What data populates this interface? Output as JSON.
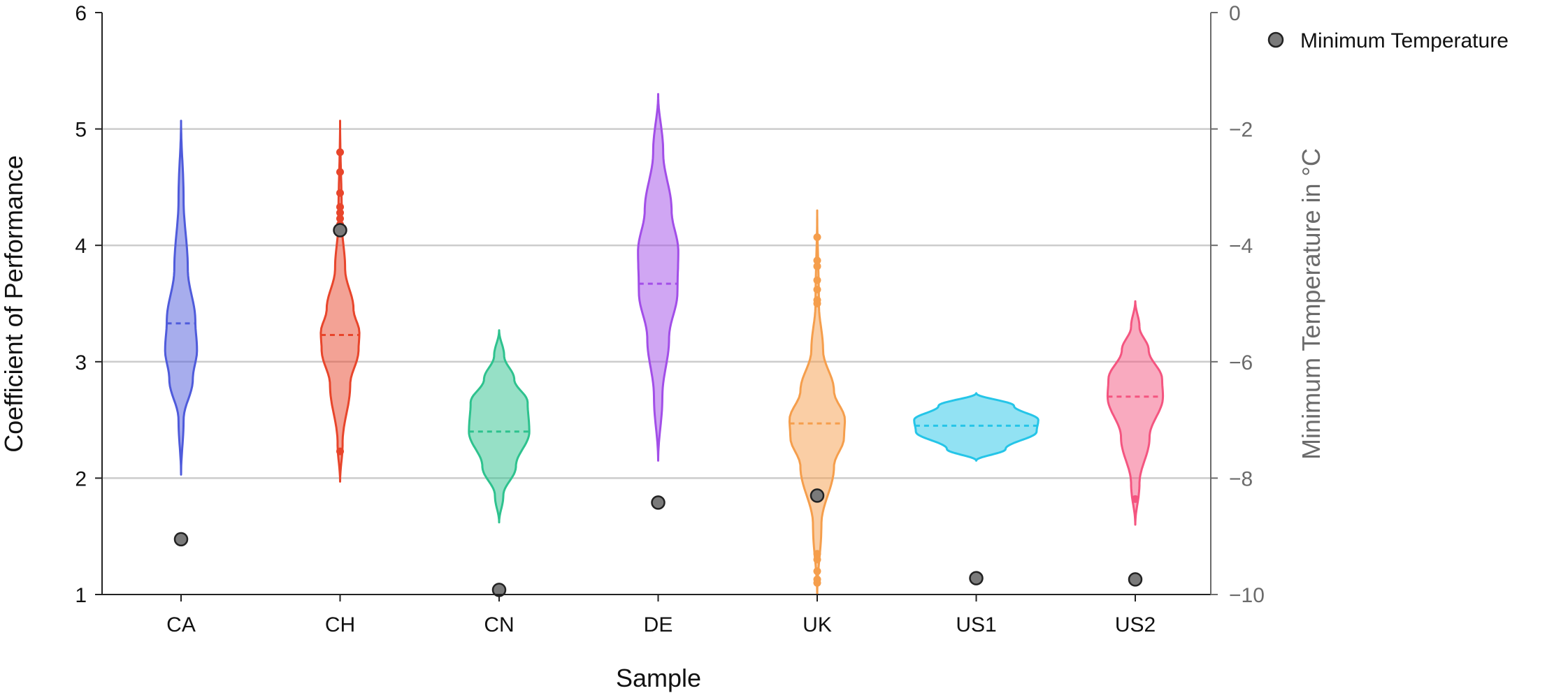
{
  "chart_data": {
    "type": "violin",
    "xlabel": "Sample",
    "ylabel": "Coefficient of Performance",
    "y2label": "Minimum Temperature in °C",
    "categories": [
      "CA",
      "CH",
      "CN",
      "DE",
      "UK",
      "US1",
      "US2"
    ],
    "ylim": [
      1,
      6
    ],
    "y_ticks": [
      "1",
      "2",
      "3",
      "4",
      "5",
      "6"
    ],
    "y2lim": [
      -10,
      0
    ],
    "y2_ticks": [
      "0",
      "−2",
      "−4",
      "−6",
      "−8",
      "−10"
    ],
    "grid": "horizontal at y = 2, 3, 4, 5",
    "legend": {
      "label": "Minimum Temperature",
      "position": "top-right"
    },
    "series": [
      {
        "category": "CA",
        "color": "#4f5bdb",
        "median": 3.33,
        "outliers": [],
        "profile": [
          [
            2.03,
            0.0
          ],
          [
            2.5,
            0.03
          ],
          [
            2.85,
            0.14
          ],
          [
            3.1,
            0.19
          ],
          [
            3.35,
            0.17
          ],
          [
            3.8,
            0.08
          ],
          [
            4.4,
            0.03
          ],
          [
            5.07,
            0.0
          ]
        ]
      },
      {
        "category": "CH",
        "color": "#e8452b",
        "median": 3.23,
        "outliers": [
          2.23,
          4.13,
          4.18,
          4.23,
          4.28,
          4.33,
          4.45,
          4.63,
          4.8
        ],
        "profile": [
          [
            1.97,
            0.0
          ],
          [
            2.3,
            0.03
          ],
          [
            2.8,
            0.12
          ],
          [
            3.1,
            0.22
          ],
          [
            3.25,
            0.23
          ],
          [
            3.45,
            0.16
          ],
          [
            3.8,
            0.06
          ],
          [
            4.2,
            0.02
          ],
          [
            5.07,
            0.0
          ]
        ]
      },
      {
        "category": "CN",
        "color": "#2ec28e",
        "median": 2.4,
        "outliers": [],
        "profile": [
          [
            1.62,
            0.0
          ],
          [
            1.85,
            0.05
          ],
          [
            2.1,
            0.2
          ],
          [
            2.4,
            0.36
          ],
          [
            2.65,
            0.34
          ],
          [
            2.85,
            0.18
          ],
          [
            3.05,
            0.06
          ],
          [
            3.27,
            0.0
          ]
        ]
      },
      {
        "category": "DE",
        "color": "#a24ee8",
        "median": 3.67,
        "outliers": [],
        "profile": [
          [
            2.15,
            0.0
          ],
          [
            2.7,
            0.05
          ],
          [
            3.2,
            0.13
          ],
          [
            3.6,
            0.23
          ],
          [
            3.95,
            0.24
          ],
          [
            4.3,
            0.16
          ],
          [
            4.8,
            0.06
          ],
          [
            5.3,
            0.0
          ]
        ]
      },
      {
        "category": "UK",
        "color": "#f59e4c",
        "median": 2.47,
        "outliers": [
          1.1,
          1.13,
          1.2,
          1.3,
          1.35,
          1.85,
          3.5,
          3.53,
          3.62,
          3.7,
          3.82,
          3.87,
          4.07
        ],
        "profile": [
          [
            1.0,
            0.0
          ],
          [
            1.6,
            0.05
          ],
          [
            2.1,
            0.2
          ],
          [
            2.35,
            0.32
          ],
          [
            2.5,
            0.33
          ],
          [
            2.75,
            0.2
          ],
          [
            3.1,
            0.07
          ],
          [
            3.5,
            0.02
          ],
          [
            4.3,
            0.0
          ]
        ]
      },
      {
        "category": "US1",
        "color": "#25c5e8",
        "median": 2.45,
        "outliers": [],
        "profile": [
          [
            2.15,
            0.0
          ],
          [
            2.25,
            0.35
          ],
          [
            2.4,
            0.72
          ],
          [
            2.5,
            0.74
          ],
          [
            2.62,
            0.45
          ],
          [
            2.73,
            0.0
          ]
        ]
      },
      {
        "category": "US2",
        "color": "#f45580",
        "median": 2.7,
        "outliers": [
          1.82
        ],
        "profile": [
          [
            1.6,
            0.0
          ],
          [
            1.95,
            0.05
          ],
          [
            2.35,
            0.17
          ],
          [
            2.7,
            0.33
          ],
          [
            2.85,
            0.32
          ],
          [
            3.1,
            0.16
          ],
          [
            3.3,
            0.05
          ],
          [
            3.52,
            0.0
          ]
        ]
      }
    ],
    "min_temperature": {
      "name": "Minimum Temperature",
      "color": "#7a7a7a",
      "values": [
        -9.05,
        -3.74,
        -9.92,
        -8.42,
        -8.3,
        -9.72,
        -9.74
      ]
    }
  }
}
